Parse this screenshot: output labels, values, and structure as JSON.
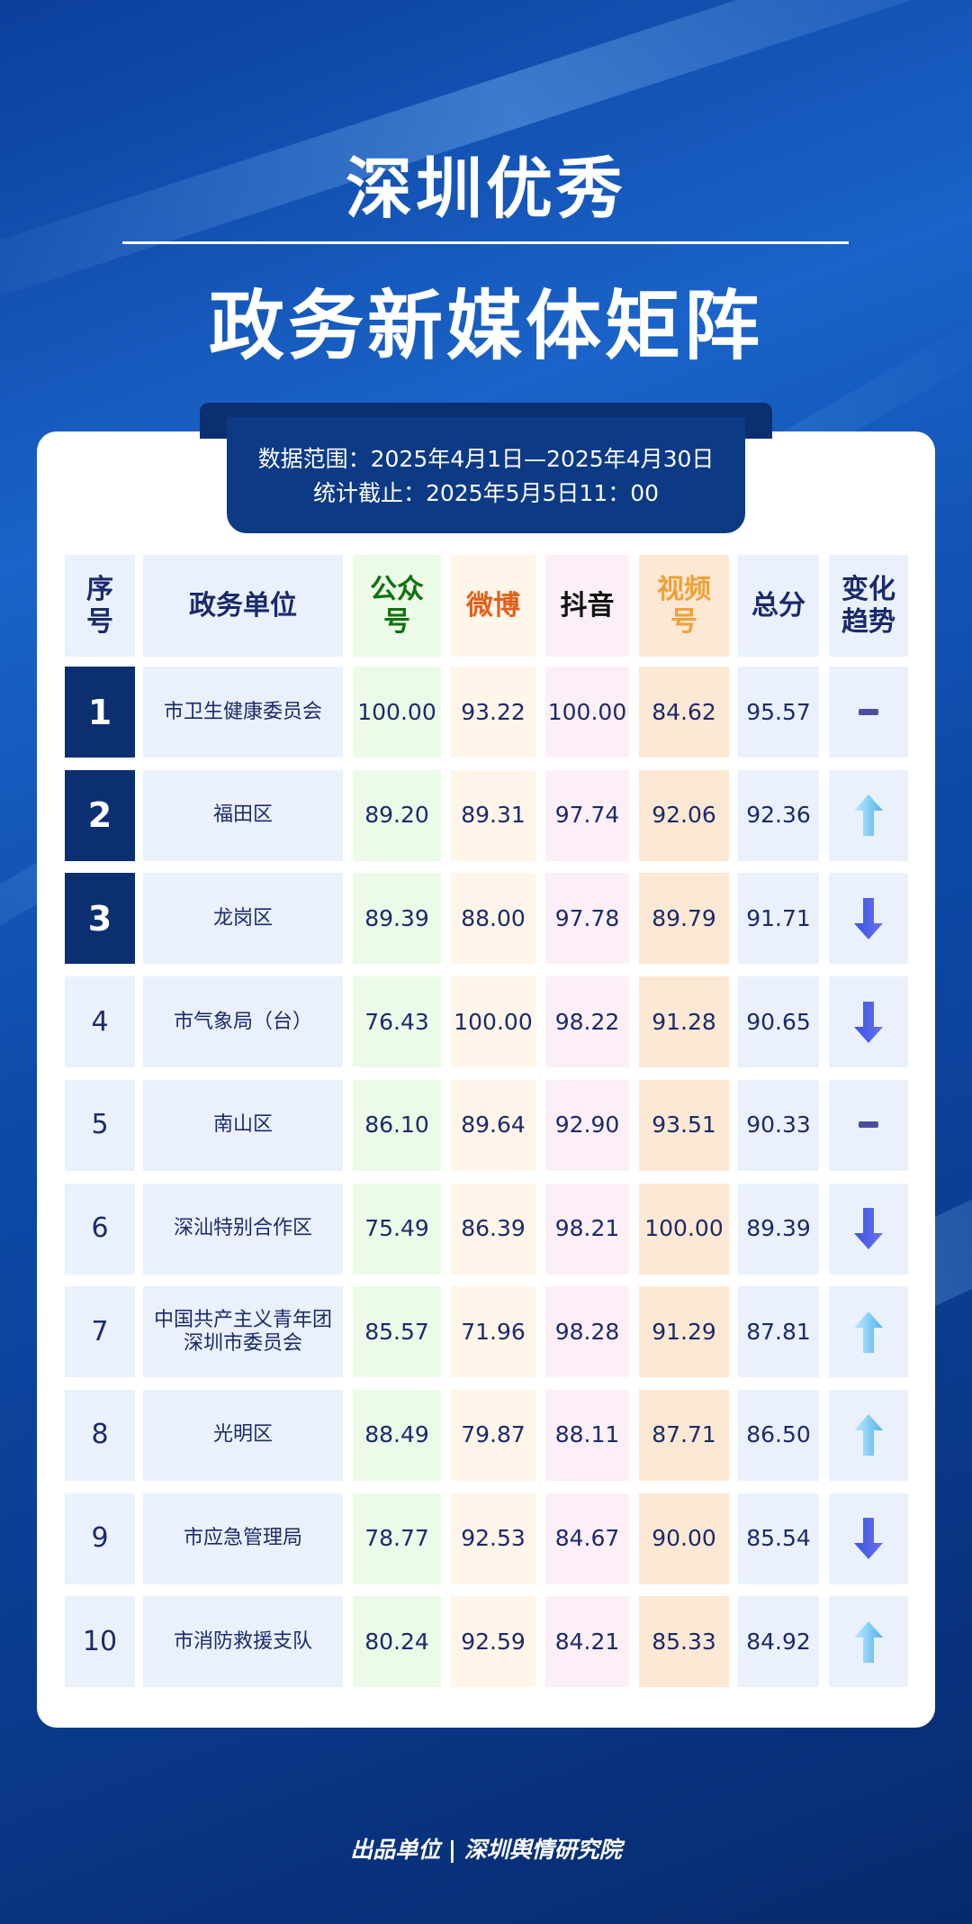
{
  "header": {
    "title": "深圳优秀",
    "subtitle": "政务新媒体矩阵",
    "range": "数据范围：2025年4月1日—2025年4月30日",
    "cutoff": "统计截止：2025年5月5日11：00"
  },
  "table": {
    "columns": [
      "序号",
      "政务单位",
      "公众号",
      "微博",
      "抖音",
      "视频号",
      "总分",
      "变化趋势"
    ],
    "column_colors": [
      "#1b2a6b",
      "#1b2a6b",
      "#12700f",
      "#e0601c",
      "#111111",
      "#eea13a",
      "#1b2a6b",
      "#1b2a6b"
    ],
    "rows": [
      [
        "1",
        "市卫生健康委员会",
        "100.00",
        "93.22",
        "100.00",
        "84.62",
        "95.57"
      ],
      [
        "2",
        "福田区",
        "89.20",
        "89.31",
        "97.74",
        "92.06",
        "92.36"
      ],
      [
        "3",
        "龙岗区",
        "89.39",
        "88.00",
        "97.78",
        "89.79",
        "91.71"
      ],
      [
        "4",
        "市气象局（台）",
        "76.43",
        "100.00",
        "98.22",
        "91.28",
        "90.65"
      ],
      [
        "5",
        "南山区",
        "86.10",
        "89.64",
        "92.90",
        "93.51",
        "90.33"
      ],
      [
        "6",
        "深汕特别合作区",
        "75.49",
        "86.39",
        "98.21",
        "100.00",
        "89.39"
      ],
      [
        "7",
        "中国共产主义青年团深圳市委员会",
        "85.57",
        "71.96",
        "98.28",
        "91.29",
        "87.81"
      ],
      [
        "8",
        "光明区",
        "88.49",
        "79.87",
        "88.11",
        "87.71",
        "86.50"
      ],
      [
        "9",
        "市应急管理局",
        "78.77",
        "92.53",
        "84.67",
        "90.00",
        "85.54"
      ],
      [
        "10",
        "市消防救援支队",
        "80.24",
        "92.59",
        "84.21",
        "85.33",
        "84.92"
      ]
    ],
    "trends": [
      "flat",
      "up",
      "down",
      "down",
      "flat",
      "down",
      "up",
      "up",
      "down",
      "up"
    ]
  },
  "footer": "出品单位 | 深圳舆情研究院"
}
